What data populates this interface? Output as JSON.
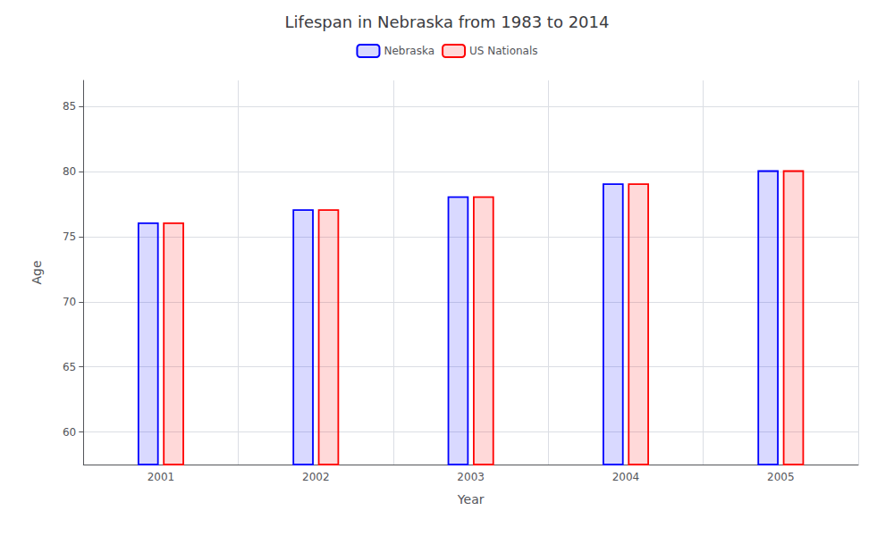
{
  "chart_data": {
    "type": "bar",
    "title": "Lifespan in Nebraska from 1983 to 2014",
    "xlabel": "Year",
    "ylabel": "Age",
    "categories": [
      "2001",
      "2002",
      "2003",
      "2004",
      "2005"
    ],
    "series": [
      {
        "name": "Nebraska",
        "color": "#0000ff",
        "values": [
          76.1,
          77.1,
          78.1,
          79.1,
          80.1
        ]
      },
      {
        "name": "US Nationals",
        "color": "#ff0000",
        "values": [
          76.1,
          77.1,
          78.1,
          79.1,
          80.1
        ]
      }
    ],
    "ylim": [
      57.5,
      87
    ],
    "yticks": [
      60,
      65,
      70,
      75,
      80,
      85
    ],
    "grid": true,
    "legend": "top"
  }
}
